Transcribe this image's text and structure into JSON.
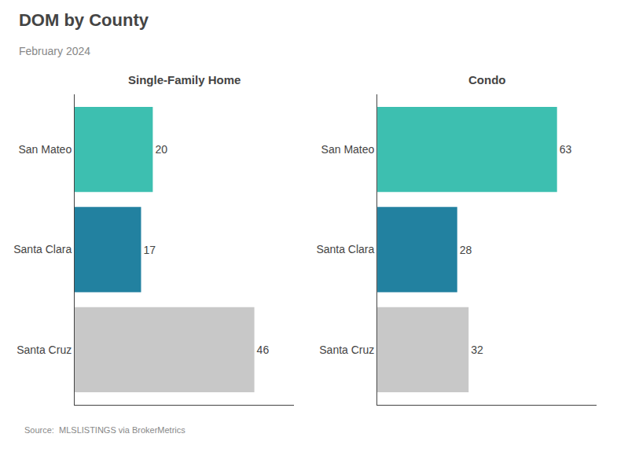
{
  "title": "DOM by County",
  "subtitle": "February 2024",
  "annotations": [
    "Source:  MLSLISTINGS via BrokerMetrics"
  ],
  "chart_data": [
    {
      "type": "bar",
      "orientation": "horizontal",
      "title": "Single-Family Home",
      "categories": [
        "San Mateo",
        "Santa Clara",
        "Santa Cruz"
      ],
      "values": [
        20,
        17,
        46
      ],
      "colors": [
        "#3dbfb0",
        "#2281a0",
        "#c8c8c8"
      ],
      "xlim": [
        0,
        56.12
      ],
      "xticks": [],
      "tick_labels": "y",
      "grid": false,
      "data_labels": true
    },
    {
      "type": "bar",
      "orientation": "horizontal",
      "title": "Condo",
      "categories": [
        "San Mateo",
        "Santa Clara",
        "Santa Cruz"
      ],
      "values": [
        63,
        28,
        32
      ],
      "colors": [
        "#3dbfb0",
        "#2281a0",
        "#c8c8c8"
      ],
      "xlim": [
        0,
        76.86
      ],
      "xticks": [],
      "tick_labels": "y",
      "grid": false,
      "data_labels": true
    }
  ]
}
